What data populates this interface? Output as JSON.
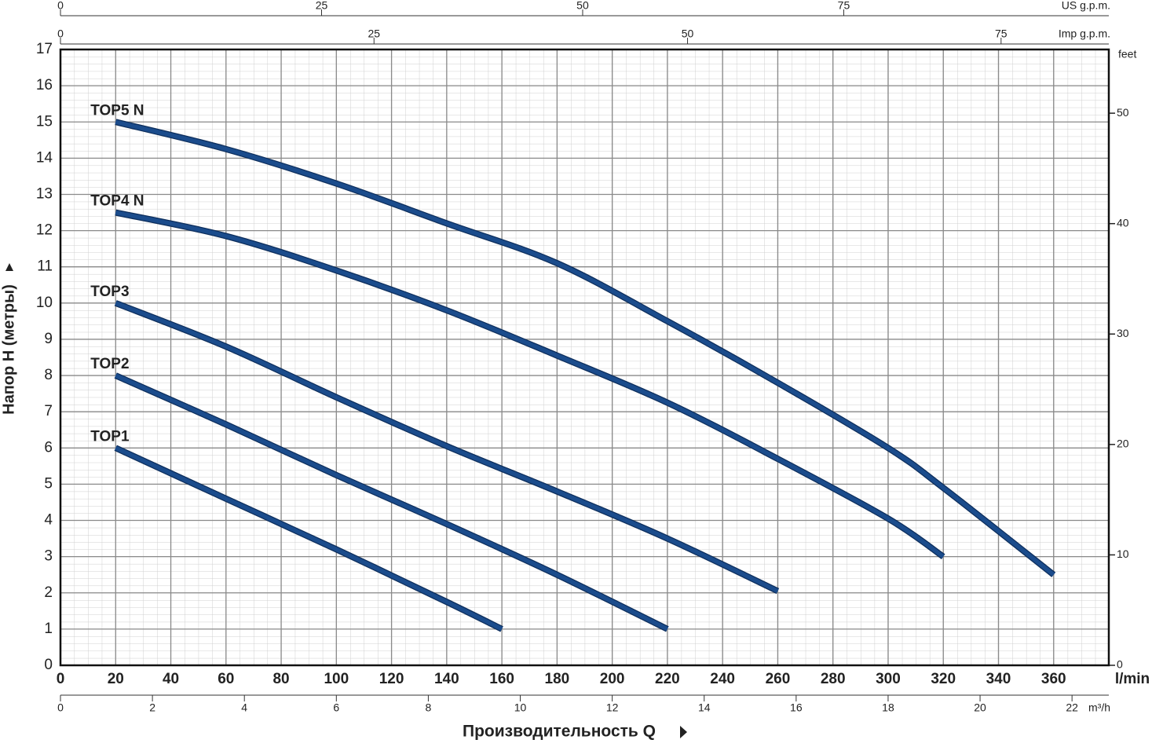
{
  "chart_data": {
    "type": "line",
    "x_label": "Производительность Q",
    "y_label": "Напор H (метры)",
    "x_unit": "l/min",
    "xlim": [
      0,
      380
    ],
    "xticks": [
      0,
      20,
      40,
      60,
      80,
      100,
      120,
      140,
      160,
      180,
      200,
      220,
      240,
      260,
      280,
      300,
      320,
      340,
      360
    ],
    "ylim": [
      0,
      17
    ],
    "yticks": [
      0,
      1,
      2,
      3,
      4,
      5,
      6,
      7,
      8,
      9,
      10,
      11,
      12,
      13,
      14,
      15,
      16,
      17
    ],
    "y2_unit": "feet",
    "y2lim": [
      0,
      55.77
    ],
    "y2ticks": [
      0,
      10,
      20,
      30,
      40,
      50
    ],
    "grid": true,
    "extra_x_axes": [
      {
        "unit": "US g.p.m.",
        "position": "top",
        "lim": [
          0,
          100.38
        ],
        "ticks": [
          0,
          25,
          50,
          75
        ]
      },
      {
        "unit": "Imp g.p.m.",
        "position": "top",
        "lim": [
          0,
          83.59
        ],
        "ticks": [
          0,
          25,
          50,
          75
        ]
      },
      {
        "unit": "m³/h",
        "position": "bottom",
        "lim": [
          0,
          22.8
        ],
        "ticks": [
          0,
          2,
          4,
          6,
          8,
          10,
          12,
          14,
          16,
          18,
          20,
          22
        ]
      }
    ],
    "series": [
      {
        "name": "TOP1",
        "color": "#1b4c8c",
        "x": [
          20,
          60,
          100,
          140,
          160
        ],
        "values": [
          6,
          4.6,
          3.2,
          1.75,
          1
        ]
      },
      {
        "name": "TOP2",
        "color": "#1b4c8c",
        "x": [
          20,
          60,
          100,
          140,
          180,
          220
        ],
        "values": [
          8,
          6.65,
          5.25,
          3.9,
          2.5,
          1
        ]
      },
      {
        "name": "TOP3",
        "color": "#1b4c8c",
        "x": [
          20,
          60,
          100,
          140,
          180,
          220,
          260
        ],
        "values": [
          10,
          8.8,
          7.4,
          6.05,
          4.8,
          3.5,
          2.05
        ]
      },
      {
        "name": "TOP4 N",
        "color": "#1b4c8c",
        "x": [
          20,
          60,
          100,
          140,
          180,
          220,
          260,
          300,
          320
        ],
        "values": [
          12.5,
          11.85,
          10.9,
          9.8,
          8.55,
          7.25,
          5.7,
          4.05,
          3
        ]
      },
      {
        "name": "TOP5 N",
        "color": "#1b4c8c",
        "x": [
          20,
          60,
          100,
          140,
          180,
          220,
          260,
          300,
          320,
          360
        ],
        "values": [
          15,
          14.25,
          13.3,
          12.2,
          11.1,
          9.5,
          7.8,
          6,
          4.9,
          2.5
        ]
      }
    ]
  }
}
